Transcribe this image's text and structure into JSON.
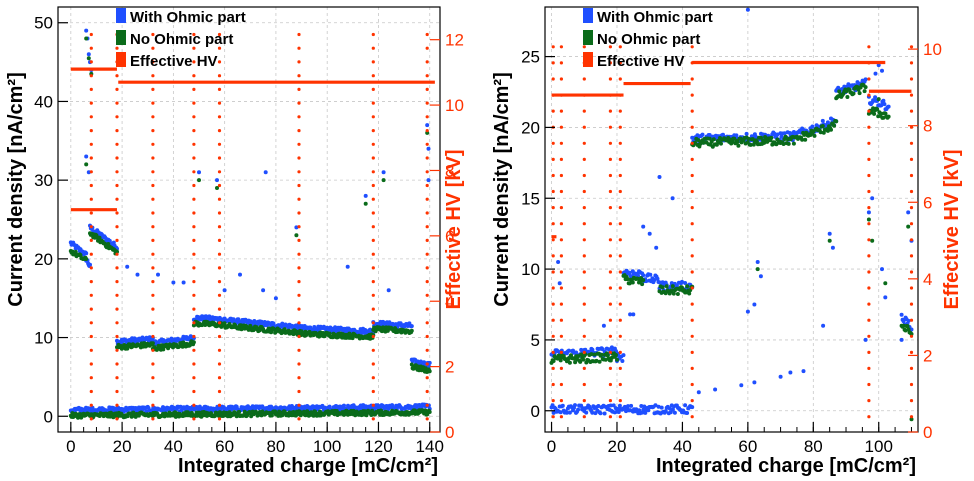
{
  "colors": {
    "with_ohmic": "#1f4fff",
    "no_ohmic": "#0a6b1a",
    "hv": "#ff3300"
  },
  "chart_data": [
    {
      "type": "scatter",
      "xlabel": "Integrated charge [mC/cm²]",
      "ylabel": "Current density [nA/cm²]",
      "y2label": "Effective HV [kV]",
      "xlim": [
        -5,
        144
      ],
      "ylim": [
        -2,
        52
      ],
      "y2lim": [
        0,
        13
      ],
      "xticks": [
        0,
        20,
        40,
        60,
        80,
        100,
        120,
        140
      ],
      "yticks": [
        0,
        10,
        20,
        30,
        40,
        50
      ],
      "y2ticks": [
        0,
        2,
        4,
        6,
        8,
        10,
        12
      ],
      "grid": true,
      "legend": {
        "position": "top-left",
        "entries": [
          "With Ohmic part",
          "No Ohmic part",
          "Effective HV"
        ]
      },
      "series": [
        {
          "name": "With Ohmic part",
          "segments": [
            {
              "x0": 0,
              "x1": 6,
              "y0": 22,
              "y1": 20.5
            },
            {
              "x0": 6,
              "x1": 7.5,
              "y0": 20,
              "y1": 19
            },
            {
              "x0": 7.5,
              "x1": 18,
              "y0": 24,
              "y1": 21.5
            },
            {
              "x0": 18,
              "x1": 32,
              "y0": 9.5,
              "y1": 9.8
            },
            {
              "x0": 32,
              "x1": 48,
              "y0": 9.3,
              "y1": 10
            },
            {
              "x0": 48,
              "x1": 60,
              "y0": 12.5,
              "y1": 12.3
            },
            {
              "x0": 60,
              "x1": 90,
              "y0": 12.2,
              "y1": 11.3
            },
            {
              "x0": 90,
              "x1": 118,
              "y0": 11.2,
              "y1": 10.8
            },
            {
              "x0": 118,
              "x1": 133,
              "y0": 11.8,
              "y1": 11.5
            },
            {
              "x0": 133,
              "x1": 140,
              "y0": 7,
              "y1": 6.5
            },
            {
              "x0": 0,
              "x1": 140,
              "y0": 0.8,
              "y1": 1.2
            }
          ],
          "points": [
            [
              6,
              49
            ],
            [
              6.5,
              48
            ],
            [
              7,
              46
            ],
            [
              7.5,
              45
            ],
            [
              8,
              44
            ],
            [
              6,
              33
            ],
            [
              7,
              31
            ],
            [
              139,
              37
            ],
            [
              139.5,
              34
            ],
            [
              139.5,
              30
            ],
            [
              22,
              19
            ],
            [
              26,
              18
            ],
            [
              34,
              18
            ],
            [
              40,
              17
            ],
            [
              44,
              17
            ],
            [
              50,
              31
            ],
            [
              57,
              30
            ],
            [
              76,
              31
            ],
            [
              88,
              24
            ],
            [
              108,
              19
            ],
            [
              115,
              28
            ],
            [
              122,
              31
            ],
            [
              124,
              16
            ],
            [
              60,
              16
            ],
            [
              66,
              18
            ],
            [
              75,
              16
            ],
            [
              80,
              15
            ]
          ]
        },
        {
          "name": "No Ohmic part",
          "segments": [
            {
              "x0": 0,
              "x1": 6,
              "y0": 21,
              "y1": 19.8
            },
            {
              "x0": 7.5,
              "x1": 18,
              "y0": 23.3,
              "y1": 20.8
            },
            {
              "x0": 18,
              "x1": 32,
              "y0": 8.8,
              "y1": 9.1
            },
            {
              "x0": 32,
              "x1": 48,
              "y0": 8.6,
              "y1": 9.3
            },
            {
              "x0": 48,
              "x1": 60,
              "y0": 11.8,
              "y1": 11.6
            },
            {
              "x0": 60,
              "x1": 90,
              "y0": 11.5,
              "y1": 10.6
            },
            {
              "x0": 90,
              "x1": 118,
              "y0": 10.5,
              "y1": 10.1
            },
            {
              "x0": 118,
              "x1": 133,
              "y0": 11.1,
              "y1": 10.8
            },
            {
              "x0": 133,
              "x1": 140,
              "y0": 6.3,
              "y1": 5.8
            },
            {
              "x0": 0,
              "x1": 140,
              "y0": 0.1,
              "y1": 0.5
            }
          ],
          "points": [
            [
              6,
              48
            ],
            [
              7,
              45.5
            ],
            [
              8,
              43.5
            ],
            [
              6,
              32
            ],
            [
              139,
              36
            ],
            [
              50,
              30
            ],
            [
              57,
              29
            ],
            [
              88,
              23
            ],
            [
              115,
              27
            ],
            [
              122,
              30
            ]
          ]
        }
      ],
      "hv": {
        "name": "Effective HV",
        "levels": [
          {
            "x0": 0,
            "x1": 18,
            "y": 11.1
          },
          {
            "x0": 18.5,
            "x1": 142,
            "y": 10.7
          },
          {
            "x0": 0,
            "x1": 18,
            "y": 6.8
          }
        ],
        "dropouts": [
          8,
          18,
          32,
          48,
          58,
          89,
          118,
          139
        ]
      }
    },
    {
      "type": "scatter",
      "xlabel": "Integrated charge [mC/cm²]",
      "ylabel": "Current density [nA/cm²]",
      "y2label": "Effective HV [kV]",
      "xlim": [
        -2,
        112
      ],
      "ylim": [
        -1.5,
        28.5
      ],
      "y2lim": [
        0,
        11.1
      ],
      "xticks": [
        0,
        20,
        40,
        60,
        80,
        100
      ],
      "yticks": [
        0,
        5,
        10,
        15,
        20,
        25
      ],
      "y2ticks": [
        0,
        2,
        4,
        6,
        8,
        10
      ],
      "grid": true,
      "legend": {
        "position": "top-left",
        "entries": [
          "With Ohmic part",
          "No Ohmic part",
          "Effective HV"
        ]
      },
      "series": [
        {
          "name": "With Ohmic part",
          "segments": [
            {
              "x0": 0,
              "x1": 20,
              "y0": 4.0,
              "y1": 4.2
            },
            {
              "x0": 20,
              "x1": 22,
              "y0": 3.8,
              "y1": 3.8
            },
            {
              "x0": 22,
              "x1": 28,
              "y0": 9.8,
              "y1": 9.6
            },
            {
              "x0": 28,
              "x1": 33,
              "y0": 9.4,
              "y1": 9.2
            },
            {
              "x0": 33,
              "x1": 43,
              "y0": 8.8,
              "y1": 8.8
            },
            {
              "x0": 43,
              "x1": 75,
              "y0": 19.2,
              "y1": 19.4
            },
            {
              "x0": 75,
              "x1": 87,
              "y0": 19.5,
              "y1": 20.5
            },
            {
              "x0": 87,
              "x1": 96,
              "y0": 22.5,
              "y1": 23.1
            },
            {
              "x0": 97,
              "x1": 103,
              "y0": 22,
              "y1": 21.5
            },
            {
              "x0": 107,
              "x1": 110,
              "y0": 6.5,
              "y1": 6
            },
            {
              "x0": 0,
              "x1": 43,
              "y0": 0.1,
              "y1": 0.1
            }
          ],
          "points": [
            [
              60,
              28.3
            ],
            [
              100,
              24.4
            ],
            [
              99,
              23.8
            ],
            [
              101,
              24
            ],
            [
              97,
              14
            ],
            [
              98,
              15
            ],
            [
              63,
              10.5
            ],
            [
              64,
              9.5
            ],
            [
              85,
              12.5
            ],
            [
              86,
              11.5
            ],
            [
              109,
              14
            ],
            [
              110,
              12
            ],
            [
              33,
              16.5
            ],
            [
              37,
              15
            ],
            [
              28,
              13
            ],
            [
              30,
              12.5
            ],
            [
              32,
              11.5
            ],
            [
              2,
              10.5
            ],
            [
              2.5,
              9
            ],
            [
              16,
              6
            ],
            [
              24,
              6.8
            ],
            [
              25,
              6.8
            ],
            [
              45,
              1.3
            ],
            [
              50,
              1.5
            ],
            [
              58,
              1.8
            ],
            [
              62,
              2.0
            ],
            [
              70,
              2.4
            ],
            [
              73,
              2.7
            ],
            [
              77,
              2.8
            ],
            [
              60,
              7
            ],
            [
              62,
              7.5
            ],
            [
              83,
              6
            ],
            [
              96,
              5
            ],
            [
              101,
              10
            ],
            [
              102,
              8
            ],
            [
              107,
              5
            ]
          ]
        },
        {
          "name": "No Ohmic part",
          "segments": [
            {
              "x0": 0,
              "x1": 20,
              "y0": 3.6,
              "y1": 3.8
            },
            {
              "x0": 22,
              "x1": 28,
              "y0": 9.3,
              "y1": 9.1
            },
            {
              "x0": 33,
              "x1": 43,
              "y0": 8.5,
              "y1": 8.5
            },
            {
              "x0": 43,
              "x1": 75,
              "y0": 18.9,
              "y1": 19.1
            },
            {
              "x0": 75,
              "x1": 87,
              "y0": 19.2,
              "y1": 20.2
            },
            {
              "x0": 87,
              "x1": 96,
              "y0": 22.2,
              "y1": 22.8
            },
            {
              "x0": 97,
              "x1": 103,
              "y0": 21.2,
              "y1": 20.8
            },
            {
              "x0": 107,
              "x1": 110,
              "y0": 6,
              "y1": 5.5
            }
          ],
          "points": [
            [
              100,
              22
            ],
            [
              97,
              13.5
            ],
            [
              85,
              12
            ],
            [
              109,
              13
            ],
            [
              63,
              10
            ],
            [
              110,
              -0.6
            ],
            [
              98,
              12
            ],
            [
              102,
              9
            ]
          ]
        }
      ],
      "hv": {
        "name": "Effective HV",
        "levels": [
          {
            "x0": 0,
            "x1": 22,
            "y": 8.8
          },
          {
            "x0": 22,
            "x1": 42.5,
            "y": 9.1
          },
          {
            "x0": 43,
            "x1": 102,
            "y": 9.65
          },
          {
            "x0": 97,
            "x1": 110,
            "y": 8.9
          },
          {
            "x0": 0,
            "x1": 1.5,
            "y": 5.1
          }
        ],
        "dropouts": [
          0.5,
          3,
          10,
          18,
          21,
          43,
          97,
          110
        ]
      }
    }
  ]
}
